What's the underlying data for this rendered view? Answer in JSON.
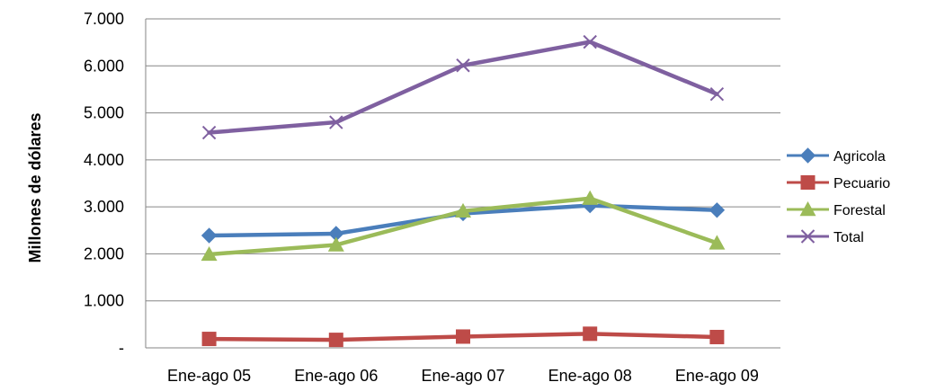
{
  "chart_data": {
    "type": "line",
    "title": "",
    "xlabel": "",
    "ylabel": "Millones de dólares",
    "categories": [
      "Ene-ago 05",
      "Ene-ago 06",
      "Ene-ago 07",
      "Ene-ago 08",
      "Ene-ago 09"
    ],
    "ylim": [
      0,
      7000
    ],
    "yticks": [
      {
        "value": 0,
        "label": "-"
      },
      {
        "value": 1000,
        "label": "1.000"
      },
      {
        "value": 2000,
        "label": "2.000"
      },
      {
        "value": 3000,
        "label": "3.000"
      },
      {
        "value": 4000,
        "label": "4.000"
      },
      {
        "value": 5000,
        "label": "5.000"
      },
      {
        "value": 6000,
        "label": "6.000"
      },
      {
        "value": 7000,
        "label": "7.000"
      }
    ],
    "grid": true,
    "legend_position": "right",
    "series": [
      {
        "name": "Agricola",
        "values": [
          2390,
          2430,
          2860,
          3030,
          2930
        ],
        "color": "#4a7ebb",
        "marker": "diamond"
      },
      {
        "name": "Pecuario",
        "values": [
          190,
          170,
          240,
          300,
          230
        ],
        "color": "#be4b48",
        "marker": "square"
      },
      {
        "name": "Forestal",
        "values": [
          1990,
          2190,
          2910,
          3180,
          2230
        ],
        "color": "#9bbb59",
        "marker": "triangle"
      },
      {
        "name": "Total",
        "values": [
          4580,
          4800,
          6010,
          6510,
          5400
        ],
        "color": "#7f60a0",
        "marker": "x"
      }
    ]
  }
}
